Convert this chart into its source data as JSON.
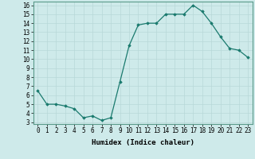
{
  "x": [
    0,
    1,
    2,
    3,
    4,
    5,
    6,
    7,
    8,
    9,
    10,
    11,
    12,
    13,
    14,
    15,
    16,
    17,
    18,
    19,
    20,
    21,
    22,
    23
  ],
  "y": [
    6.5,
    5.0,
    5.0,
    4.8,
    4.5,
    3.5,
    3.7,
    3.2,
    3.5,
    7.5,
    11.5,
    13.8,
    14.0,
    14.0,
    15.0,
    15.0,
    15.0,
    16.0,
    15.3,
    14.0,
    12.5,
    11.2,
    11.0,
    10.2
  ],
  "line_color": "#1a7a6e",
  "marker": "D",
  "marker_size": 1.8,
  "bg_color": "#ceeaea",
  "grid_color": "#b8d8d8",
  "xlabel": "Humidex (Indice chaleur)",
  "ylim_min": 2.8,
  "ylim_max": 16.4,
  "xlim_min": -0.5,
  "xlim_max": 23.5,
  "yticks": [
    3,
    4,
    5,
    6,
    7,
    8,
    9,
    10,
    11,
    12,
    13,
    14,
    15,
    16
  ],
  "xticks": [
    0,
    1,
    2,
    3,
    4,
    5,
    6,
    7,
    8,
    9,
    10,
    11,
    12,
    13,
    14,
    15,
    16,
    17,
    18,
    19,
    20,
    21,
    22,
    23
  ],
  "label_fontsize": 6.5,
  "tick_fontsize": 5.5
}
